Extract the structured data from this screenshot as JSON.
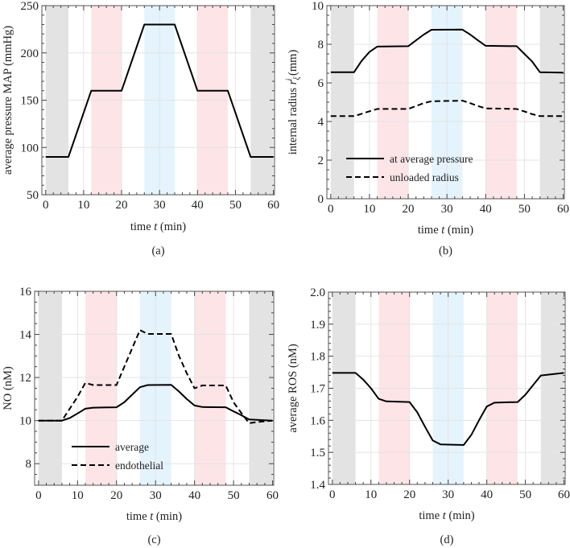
{
  "colors": {
    "gray_band": "#e3e3e3",
    "pink_band": "#fde4e7",
    "blue_band": "#e5f3fd",
    "line": "#000000",
    "grid": "#e4e4e4"
  },
  "chart_data": [
    {
      "id": "a",
      "type": "line",
      "caption": "(a)",
      "xlabel_parts": [
        "time ",
        "t",
        " (min)"
      ],
      "ylabel_parts": [
        "average pressure MAP (mmHg)"
      ],
      "xlim": [
        -1,
        60.3
      ],
      "ylim": [
        50,
        250
      ],
      "xticks": [
        "0",
        "10",
        "20",
        "30",
        "40",
        "50",
        "60"
      ],
      "yticks": [
        "50",
        "100",
        "150",
        "200",
        "250"
      ],
      "bands": [
        {
          "from": 0,
          "to": 6,
          "color": "gray"
        },
        {
          "from": 12,
          "to": 20,
          "color": "pink"
        },
        {
          "from": 26,
          "to": 34,
          "color": "blue"
        },
        {
          "from": 40,
          "to": 48,
          "color": "pink"
        },
        {
          "from": 54,
          "to": 60,
          "color": "gray"
        }
      ],
      "series": [
        {
          "name": "MAP",
          "style": "solid",
          "x": [
            0,
            6,
            12,
            20,
            26,
            34,
            40,
            48,
            54,
            60
          ],
          "y": [
            90,
            90,
            160,
            160,
            230,
            230,
            160,
            160,
            90,
            90
          ]
        }
      ]
    },
    {
      "id": "b",
      "type": "line",
      "caption": "(b)",
      "xlabel_parts": [
        "time ",
        "t",
        " (min)"
      ],
      "ylabel_parts": [
        "internal radius ",
        "r",
        "ξ",
        "i",
        " (mm)"
      ],
      "xlim": [
        -1,
        60.3
      ],
      "ylim": [
        0,
        10
      ],
      "xticks": [
        "0",
        "10",
        "20",
        "30",
        "40",
        "50",
        "60"
      ],
      "yticks": [
        "0",
        "2",
        "4",
        "6",
        "8",
        "10"
      ],
      "bands": [
        {
          "from": 0,
          "to": 6,
          "color": "gray"
        },
        {
          "from": 12,
          "to": 20,
          "color": "pink"
        },
        {
          "from": 26,
          "to": 34,
          "color": "blue"
        },
        {
          "from": 40,
          "to": 48,
          "color": "pink"
        },
        {
          "from": 54,
          "to": 60,
          "color": "gray"
        }
      ],
      "legend": "bottom-left",
      "series": [
        {
          "name": "at average pressure",
          "style": "solid",
          "x": [
            0,
            6,
            8,
            10,
            12,
            20,
            22,
            24,
            26,
            34,
            36,
            38,
            40,
            48,
            50,
            52,
            54,
            60
          ],
          "y": [
            6.55,
            6.55,
            7.15,
            7.6,
            7.88,
            7.9,
            8.2,
            8.5,
            8.75,
            8.76,
            8.5,
            8.2,
            7.92,
            7.9,
            7.5,
            7.1,
            6.55,
            6.53
          ]
        },
        {
          "name": "unloaded radius",
          "style": "dashed",
          "x": [
            0,
            6,
            8,
            10,
            12,
            20,
            22,
            24,
            26,
            34,
            36,
            38,
            40,
            48,
            50,
            52,
            54,
            60
          ],
          "y": [
            4.28,
            4.28,
            4.4,
            4.53,
            4.65,
            4.65,
            4.8,
            4.95,
            5.05,
            5.08,
            4.95,
            4.8,
            4.68,
            4.65,
            4.52,
            4.38,
            4.28,
            4.28
          ]
        }
      ]
    },
    {
      "id": "c",
      "type": "line",
      "caption": "(c)",
      "xlabel_parts": [
        "time ",
        "t",
        " (min)"
      ],
      "ylabel_parts": [
        "NO (nM)"
      ],
      "xlim": [
        -1,
        60.3
      ],
      "ylim": [
        7,
        16
      ],
      "xticks": [
        "0",
        "10",
        "20",
        "30",
        "40",
        "50",
        "60"
      ],
      "yticks": [
        "8",
        "10",
        "12",
        "14",
        "16"
      ],
      "bands": [
        {
          "from": 0,
          "to": 6,
          "color": "gray"
        },
        {
          "from": 12,
          "to": 20,
          "color": "pink"
        },
        {
          "from": 26,
          "to": 34,
          "color": "blue"
        },
        {
          "from": 40,
          "to": 48,
          "color": "pink"
        },
        {
          "from": 54,
          "to": 60,
          "color": "gray"
        }
      ],
      "legend": "bottom-left",
      "series": [
        {
          "name": "average",
          "style": "solid",
          "x": [
            0,
            6,
            8,
            10,
            12,
            14,
            20,
            22,
            24,
            26,
            28,
            34,
            36,
            38,
            40,
            42,
            48,
            50,
            52,
            54,
            60
          ],
          "y": [
            10,
            10,
            10.12,
            10.33,
            10.55,
            10.6,
            10.62,
            10.85,
            11.2,
            11.55,
            11.65,
            11.66,
            11.35,
            11.0,
            10.7,
            10.63,
            10.62,
            10.43,
            10.25,
            10.05,
            10.0
          ]
        },
        {
          "name": "endothelial",
          "style": "dashed",
          "x": [
            0,
            6,
            8,
            10,
            12,
            14,
            20,
            22,
            24,
            26,
            28,
            34,
            36,
            38,
            40,
            42,
            48,
            50,
            52,
            54,
            56,
            60
          ],
          "y": [
            10,
            10,
            10.55,
            11.1,
            11.75,
            11.65,
            11.65,
            12.5,
            13.35,
            14.2,
            14.02,
            14.02,
            13.0,
            12.2,
            11.5,
            11.63,
            11.63,
            10.85,
            10.35,
            9.88,
            9.93,
            10.0
          ]
        }
      ]
    },
    {
      "id": "d",
      "type": "line",
      "caption": "(d)",
      "xlabel_parts": [
        "time ",
        "t",
        " (min)"
      ],
      "ylabel_parts": [
        "average ROS (nM)"
      ],
      "xlim": [
        -1,
        60.3
      ],
      "ylim": [
        1.4,
        2.0
      ],
      "xticks": [
        "0",
        "10",
        "20",
        "30",
        "40",
        "50",
        "60"
      ],
      "yticks": [
        "1.4",
        "1.5",
        "1.6",
        "1.7",
        "1.8",
        "1.9",
        "2.0"
      ],
      "bands": [
        {
          "from": 0,
          "to": 6,
          "color": "gray"
        },
        {
          "from": 12,
          "to": 20,
          "color": "pink"
        },
        {
          "from": 26,
          "to": 34,
          "color": "blue"
        },
        {
          "from": 40,
          "to": 48,
          "color": "pink"
        },
        {
          "from": 54,
          "to": 60,
          "color": "gray"
        }
      ],
      "series": [
        {
          "name": "average ROS",
          "style": "solid",
          "x": [
            0,
            6,
            8,
            10,
            12,
            14,
            20,
            22,
            24,
            26,
            28,
            34,
            36,
            38,
            40,
            42,
            48,
            50,
            52,
            54,
            60
          ],
          "y": [
            1.748,
            1.748,
            1.727,
            1.7,
            1.667,
            1.659,
            1.657,
            1.625,
            1.58,
            1.537,
            1.525,
            1.523,
            1.555,
            1.6,
            1.643,
            1.655,
            1.657,
            1.68,
            1.71,
            1.74,
            1.748
          ]
        }
      ]
    }
  ]
}
